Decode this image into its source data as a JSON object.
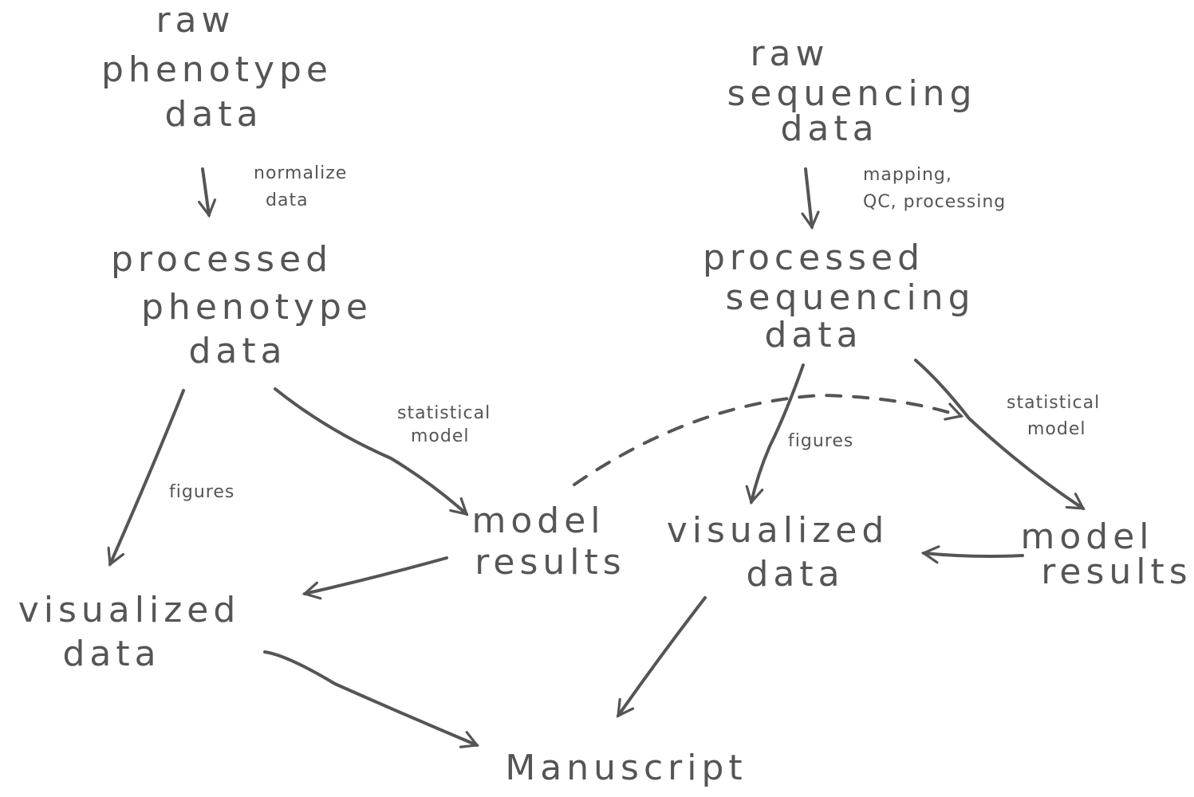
{
  "diagram": {
    "nodes": {
      "raw_pheno": [
        "raw",
        "phenotype",
        "data"
      ],
      "proc_pheno": [
        "processed",
        "phenotype",
        "data"
      ],
      "vis_left": [
        "visualized",
        "data"
      ],
      "model_left": [
        "model",
        "results"
      ],
      "raw_seq": [
        "raw",
        "sequencing",
        "data"
      ],
      "proc_seq": [
        "processed",
        "sequencing",
        "data"
      ],
      "vis_right": [
        "visualized",
        "data"
      ],
      "model_right": [
        "model",
        "results"
      ],
      "manuscript": [
        "Manuscript"
      ]
    },
    "edge_labels": {
      "normalize": [
        "normalize",
        "data"
      ],
      "mapping": [
        "mapping,",
        "QC, processing"
      ],
      "figures_left": [
        "figures"
      ],
      "stat_left": [
        "statistical",
        "model"
      ],
      "figures_right": [
        "figures"
      ],
      "stat_right": [
        "statistical",
        "model"
      ]
    },
    "colors": {
      "ink": "#555555",
      "background": "#ffffff"
    }
  }
}
